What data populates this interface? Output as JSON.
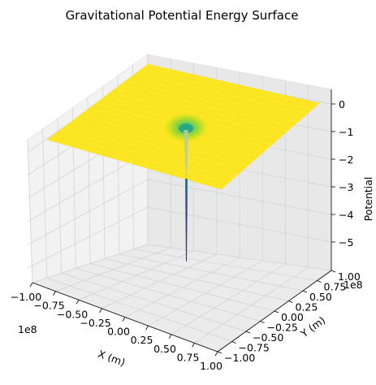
{
  "chart_data": {
    "type": "surface-3d",
    "title": "Gravitational Potential Energy Surface",
    "xlabel": "X (m)",
    "ylabel": "Y (m)",
    "zlabel": "Potential",
    "x_offset_label": "1e8",
    "y_offset_label": "1e8",
    "xlim": [
      -1.0,
      1.0
    ],
    "ylim": [
      -1.0,
      1.0
    ],
    "zlim": [
      -5.5,
      0
    ],
    "x_ticks": [
      "−1.00",
      "−0.75",
      "−0.50",
      "−0.25",
      "0.00",
      "0.25",
      "0.50",
      "0.75",
      "1.00"
    ],
    "y_ticks": [
      "−1.00",
      "−0.75",
      "−0.50",
      "−0.25",
      "0.00",
      "0.25",
      "0.50",
      "0.75",
      "1.00"
    ],
    "z_ticks": [
      "0",
      "−1",
      "−2",
      "−3",
      "−4",
      "−5"
    ],
    "surface": {
      "description": "Flat plane near 0 with a deep narrow well at the origin",
      "plane_value": 0,
      "well_center": [
        0,
        0
      ],
      "well_min": -5.5,
      "colormap": "viridis"
    },
    "grid": true
  },
  "colors": {
    "pane": "#f2f2f2",
    "grid": "#d0d0d0",
    "surface_high": "#fde725",
    "surface_mid": "#35b779",
    "surface_low": "#3b2f7f"
  }
}
